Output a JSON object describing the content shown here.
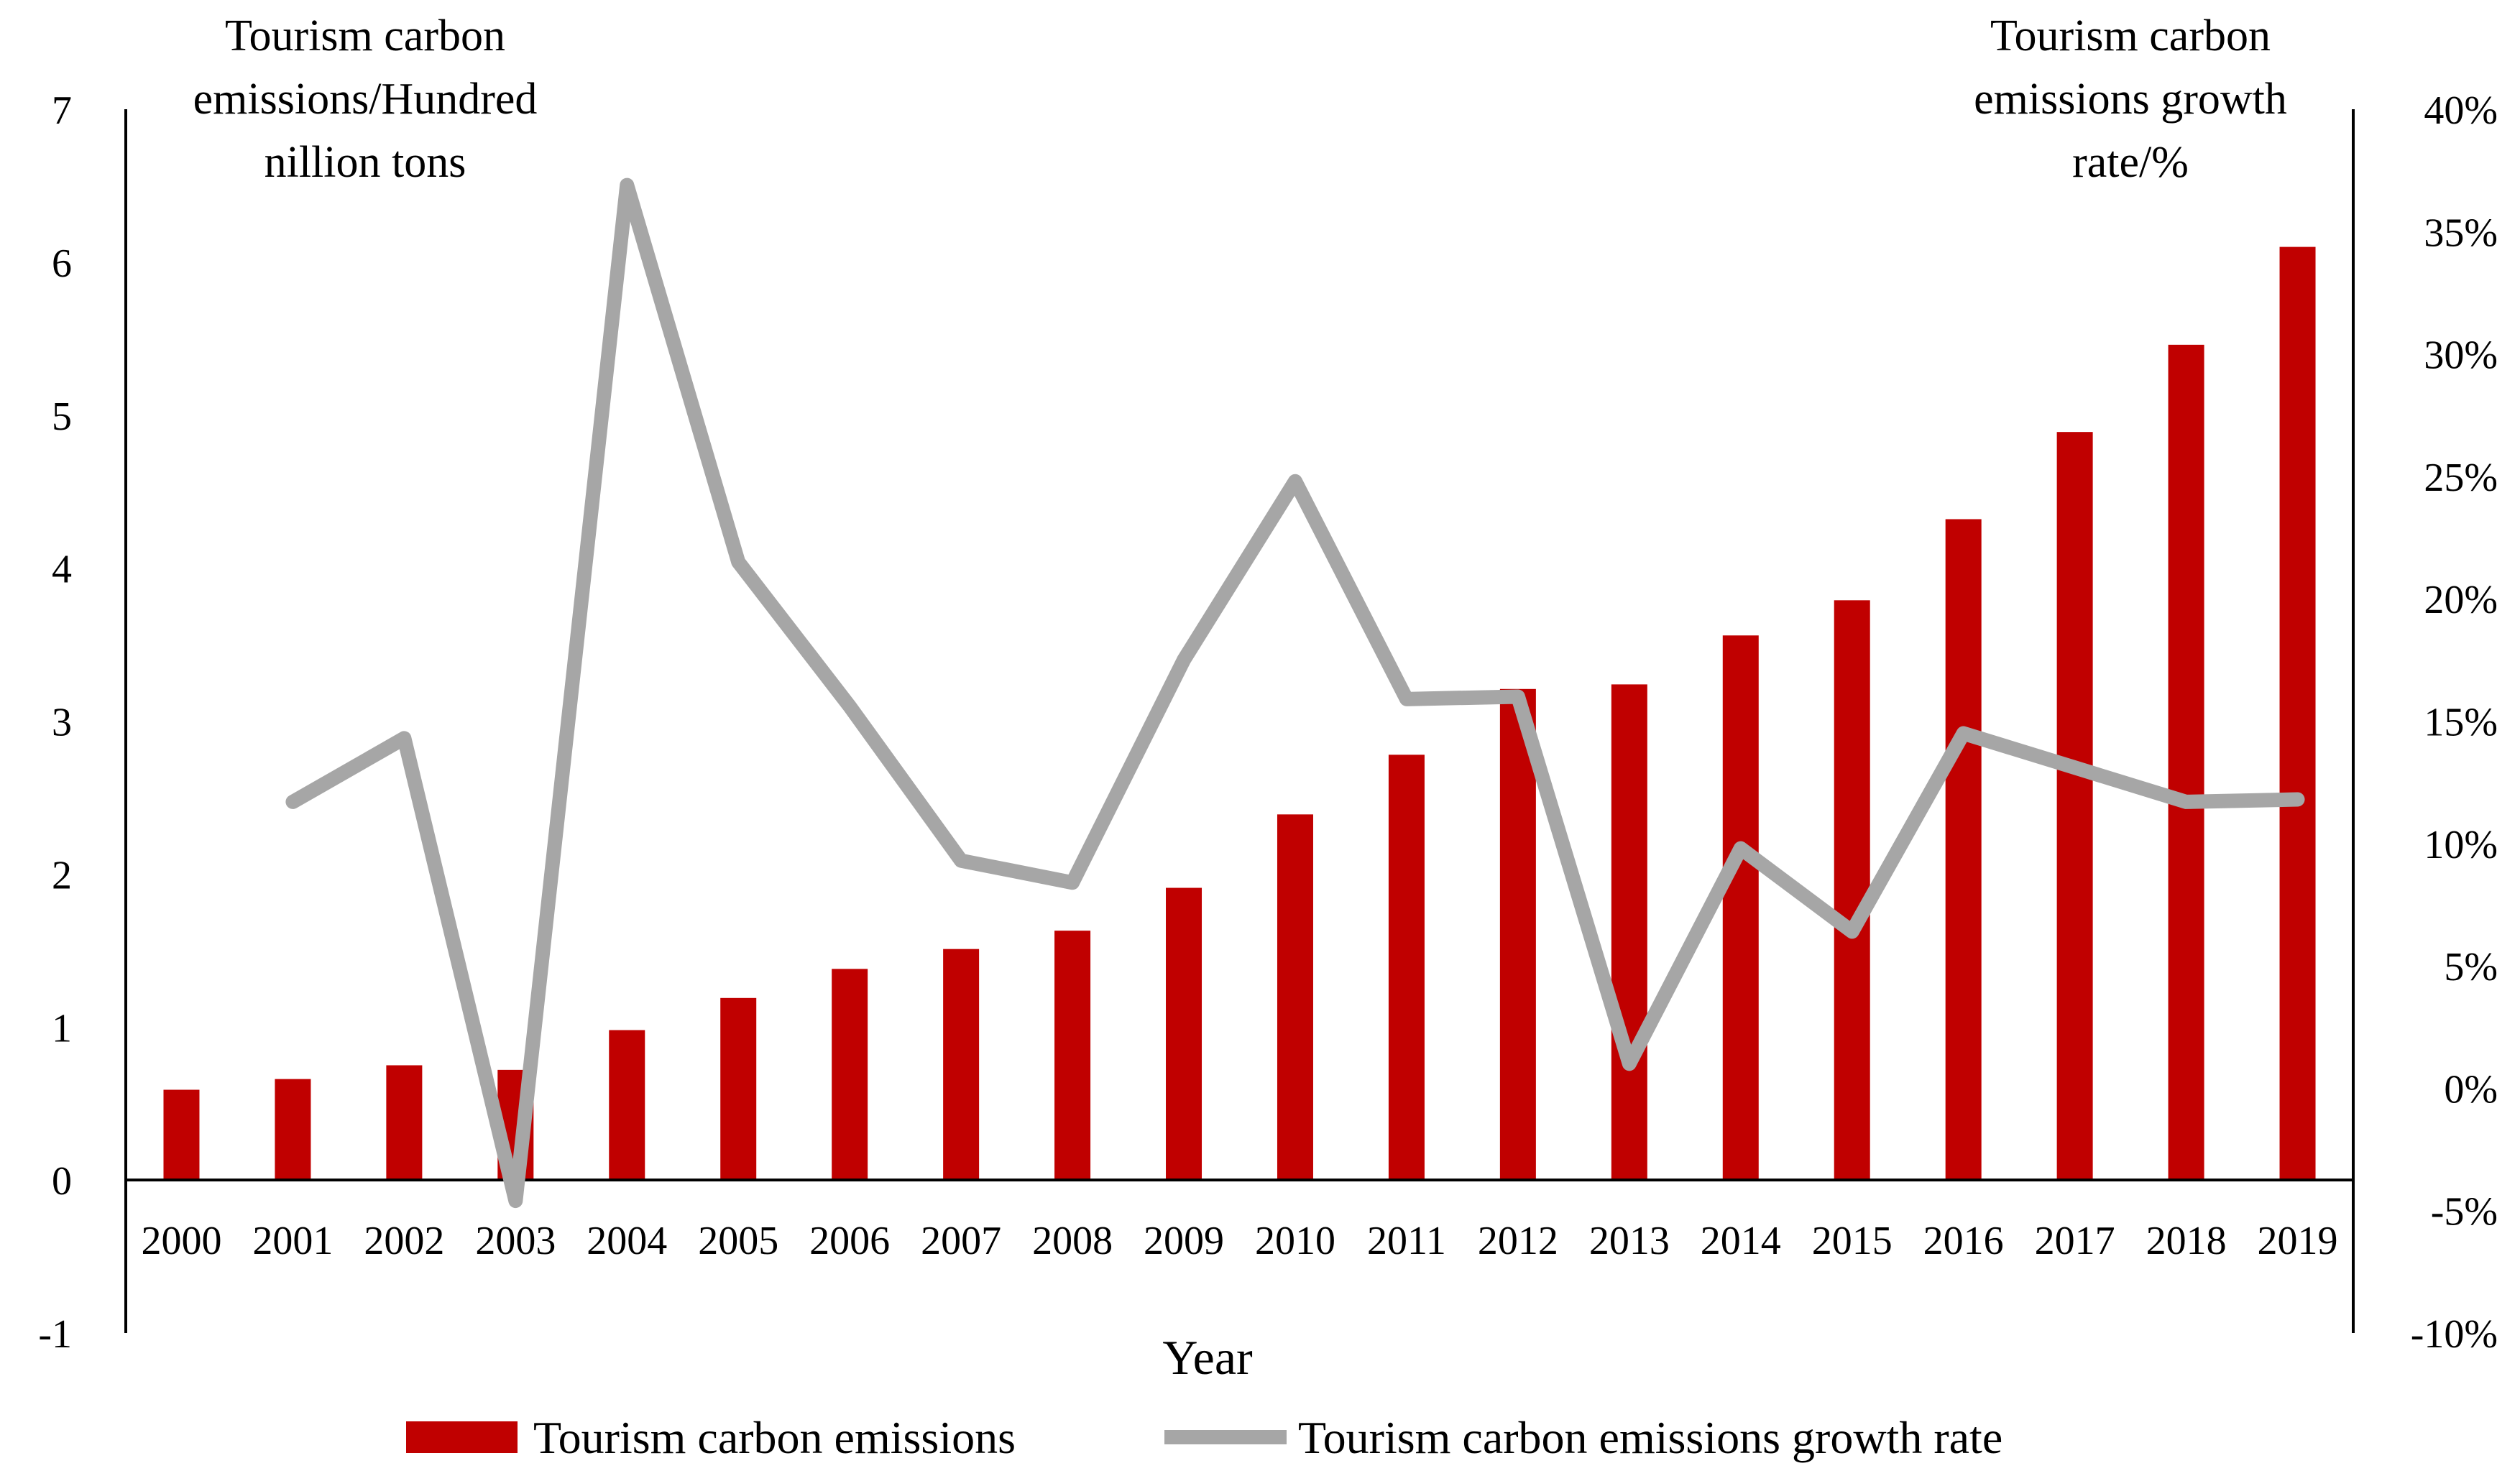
{
  "chart_data": {
    "type": "bar+line",
    "categories": [
      "2000",
      "2001",
      "2002",
      "2003",
      "2004",
      "2005",
      "2006",
      "2007",
      "2008",
      "2009",
      "2010",
      "2011",
      "2012",
      "2013",
      "2014",
      "2015",
      "2016",
      "2017",
      "2018",
      "2019"
    ],
    "series": [
      {
        "name": "Tourism carbon emissions",
        "type": "bar",
        "axis": "left",
        "color": "#c00000",
        "values": [
          0.59,
          0.66,
          0.75,
          0.72,
          0.98,
          1.19,
          1.38,
          1.51,
          1.63,
          1.91,
          2.39,
          2.78,
          3.21,
          3.24,
          3.56,
          3.79,
          4.32,
          4.89,
          5.46,
          6.1
        ]
      },
      {
        "name": "Tourism carbon emissions growth rate",
        "type": "line",
        "axis": "right",
        "color": "#a6a6a6",
        "values": [
          null,
          11.7,
          14.3,
          -4.6,
          36.9,
          21.5,
          15.6,
          9.3,
          8.4,
          17.5,
          24.8,
          15.9,
          16.0,
          1.0,
          9.8,
          6.4,
          14.5,
          13.1,
          11.7,
          11.8
        ]
      }
    ],
    "y_left": {
      "title_lines": [
        "Tourism carbon",
        "emissions/Hundred",
        "nillion tons"
      ],
      "lim": [
        -1,
        7
      ],
      "ticks": [
        -1,
        0,
        1,
        2,
        3,
        4,
        5,
        6,
        7
      ]
    },
    "y_right": {
      "title_lines": [
        "Tourism carbon",
        "emissions growth",
        "rate/%"
      ],
      "lim": [
        -10,
        40
      ],
      "ticks": [
        -10,
        -5,
        0,
        5,
        10,
        15,
        20,
        25,
        30,
        35,
        40
      ],
      "tick_labels": [
        "-10%",
        "-5%",
        "0%",
        "5%",
        "10%",
        "15%",
        "20%",
        "25%",
        "30%",
        "35%",
        "40%"
      ]
    },
    "xlabel": "Year",
    "legend": {
      "position": "bottom",
      "entries": [
        "Tourism carbon emissions",
        "Tourism carbon emissions growth rate"
      ]
    },
    "grid": false
  }
}
